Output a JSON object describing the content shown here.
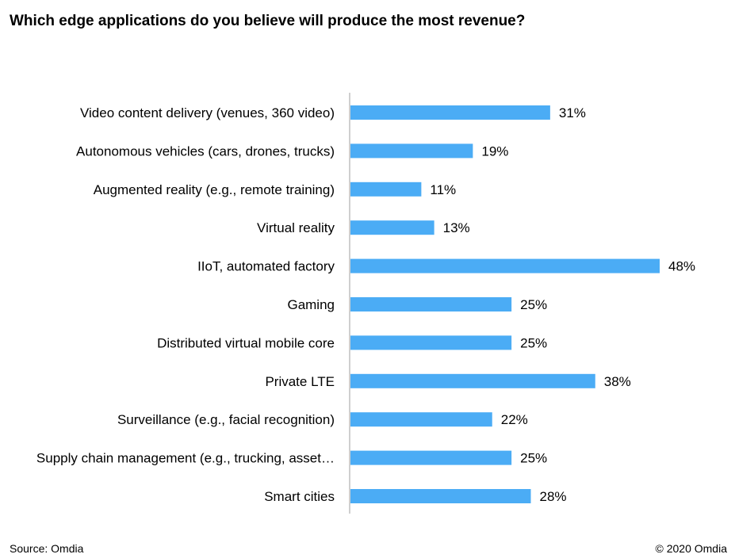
{
  "chart_data": {
    "type": "bar",
    "orientation": "horizontal",
    "title": "Which edge applications  do you believe will produce  the most revenue?",
    "categories": [
      "Video content delivery (venues, 360 video)",
      "Autonomous vehicles (cars, drones, trucks)",
      "Augmented reality (e.g., remote training)",
      "Virtual reality",
      "IIoT, automated factory",
      "Gaming",
      "Distributed virtual mobile core",
      "Private LTE",
      "Surveillance (e.g., facial recognition)",
      "Supply chain management (e.g., trucking, asset…",
      "Smart cities"
    ],
    "values": [
      31,
      19,
      11,
      13,
      48,
      25,
      25,
      38,
      22,
      25,
      28
    ],
    "value_labels": [
      "31%",
      "19%",
      "11%",
      "13%",
      "48%",
      "25%",
      "25%",
      "38%",
      "22%",
      "25%",
      "28%"
    ],
    "unit": "%",
    "xlim": [
      0,
      50
    ],
    "grid": false,
    "legend": "none",
    "bar_color": "#4BACF5"
  },
  "footer": {
    "source": "Source: Omdia",
    "copyright": "© 2020 Omdia"
  }
}
